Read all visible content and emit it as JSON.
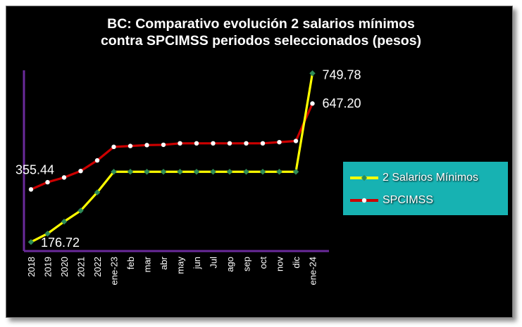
{
  "chart_data": {
    "type": "line",
    "title": [
      "BC: Comparativo evolución 2 salarios mínimos",
      "contra SPCIMSS  periodos seleccionados (pesos)"
    ],
    "categories": [
      "2018",
      "2019",
      "2020",
      "2021",
      "2022",
      "ene-23",
      "feb",
      "mar",
      "abr",
      "may",
      "jun",
      "Jul",
      "ago",
      "sep",
      "oct",
      "nov",
      "dic",
      "ene-24"
    ],
    "series": [
      {
        "name": "2 Salarios Mínimos",
        "color": "#ffff00",
        "marker_color": "#2e8b57",
        "values": [
          176.72,
          205.36,
          246.16,
          283.36,
          345.36,
          415.36,
          415.36,
          415.36,
          415.36,
          415.36,
          415.36,
          415.36,
          415.36,
          415.36,
          415.36,
          415.36,
          415.36,
          749.78
        ]
      },
      {
        "name": "SPCIMSS",
        "color": "#cc0000",
        "marker_color": "#ffffff",
        "values": [
          355.44,
          380.0,
          396.0,
          418.0,
          454.0,
          500.0,
          503.0,
          506.0,
          507.0,
          512.0,
          512.0,
          512.0,
          512.0,
          512.0,
          512.0,
          516.0,
          520.0,
          647.2
        ]
      }
    ],
    "data_labels": [
      {
        "series": 1,
        "index": 0,
        "text": "355.44"
      },
      {
        "series": 0,
        "index": 0,
        "text": "176.72"
      },
      {
        "series": 0,
        "index": 17,
        "text": "749.78"
      },
      {
        "series": 1,
        "index": 17,
        "text": "647.20"
      }
    ],
    "ylim": [
      170,
      760
    ],
    "grid": false,
    "legend_position": "right",
    "axis_color": "#6a2a9a"
  }
}
